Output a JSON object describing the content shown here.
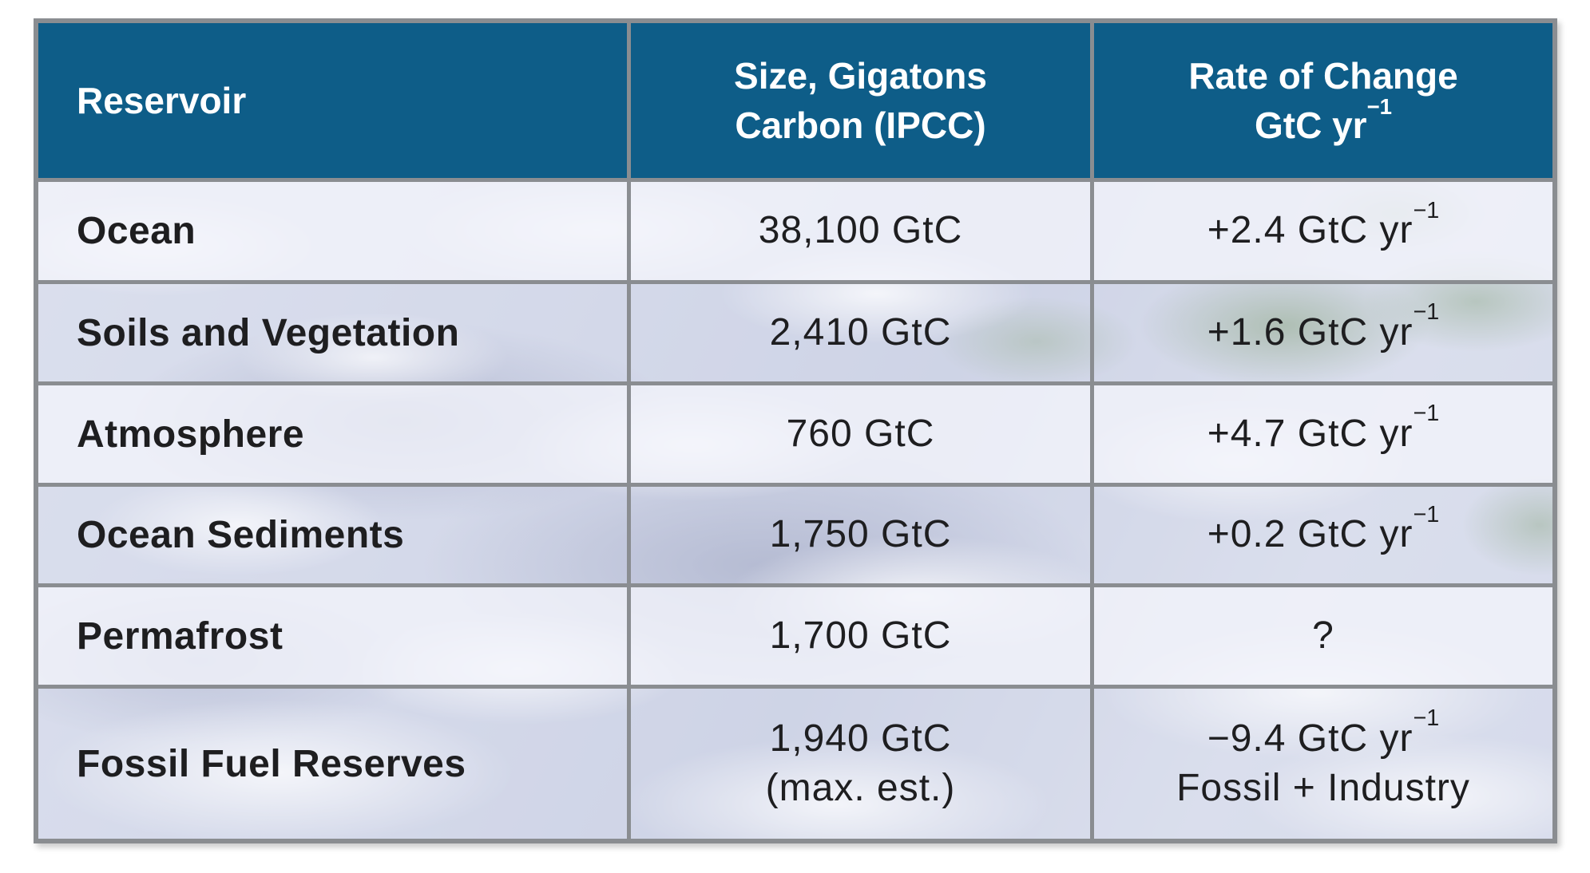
{
  "colors": {
    "header_bg": "#0e5d88",
    "header_text": "#ffffff",
    "border": "#8a8d91",
    "cell_text": "#1e1e20",
    "page_bg": "#ffffff"
  },
  "table": {
    "header": {
      "col1": "Reservoir",
      "col2_line1": "Size, Gigatons",
      "col2_line2": "Carbon (IPCC)",
      "col3_line1": "Rate of Change",
      "col3_line2_main": "GtC yr",
      "col3_line2_sup": "−1"
    },
    "rows": [
      {
        "reservoir": "Ocean",
        "size_line1": "38,100 GtC",
        "size_line2": "",
        "rate_main": "+2.4 GtC yr",
        "rate_sup": "−1",
        "rate_line2": ""
      },
      {
        "reservoir": "Soils and Vegetation",
        "size_line1": "2,410 GtC",
        "size_line2": "",
        "rate_main": "+1.6 GtC yr",
        "rate_sup": "−1",
        "rate_line2": ""
      },
      {
        "reservoir": "Atmosphere",
        "size_line1": "760 GtC",
        "size_line2": "",
        "rate_main": "+4.7 GtC yr",
        "rate_sup": "−1",
        "rate_line2": ""
      },
      {
        "reservoir": "Ocean Sediments",
        "size_line1": "1,750 GtC",
        "size_line2": "",
        "rate_main": "+0.2 GtC yr",
        "rate_sup": "−1",
        "rate_line2": ""
      },
      {
        "reservoir": "Permafrost",
        "size_line1": "1,700 GtC",
        "size_line2": "",
        "rate_main": "?",
        "rate_sup": "",
        "rate_line2": ""
      },
      {
        "reservoir": "Fossil Fuel Reserves",
        "size_line1": "1,940 GtC",
        "size_line2": "(max. est.)",
        "rate_main": "−9.4 GtC yr",
        "rate_sup": "−1",
        "rate_line2": "Fossil + Industry"
      }
    ]
  },
  "chart_data": {
    "type": "table",
    "columns": [
      "Reservoir",
      "Size, Gigatons Carbon (IPCC)",
      "Rate of Change GtC yr−1"
    ],
    "rows": [
      [
        "Ocean",
        "38,100 GtC",
        "+2.4 GtC yr−1"
      ],
      [
        "Soils and Vegetation",
        "2,410 GtC",
        "+1.6 GtC yr−1"
      ],
      [
        "Atmosphere",
        "760 GtC",
        "+4.7 GtC yr−1"
      ],
      [
        "Ocean Sediments",
        "1,750 GtC",
        "+0.2 GtC yr−1"
      ],
      [
        "Permafrost",
        "1,700 GtC",
        "?"
      ],
      [
        "Fossil Fuel Reserves",
        "1,940 GtC (max. est.)",
        "−9.4 GtC yr−1 Fossil + Industry"
      ]
    ]
  }
}
